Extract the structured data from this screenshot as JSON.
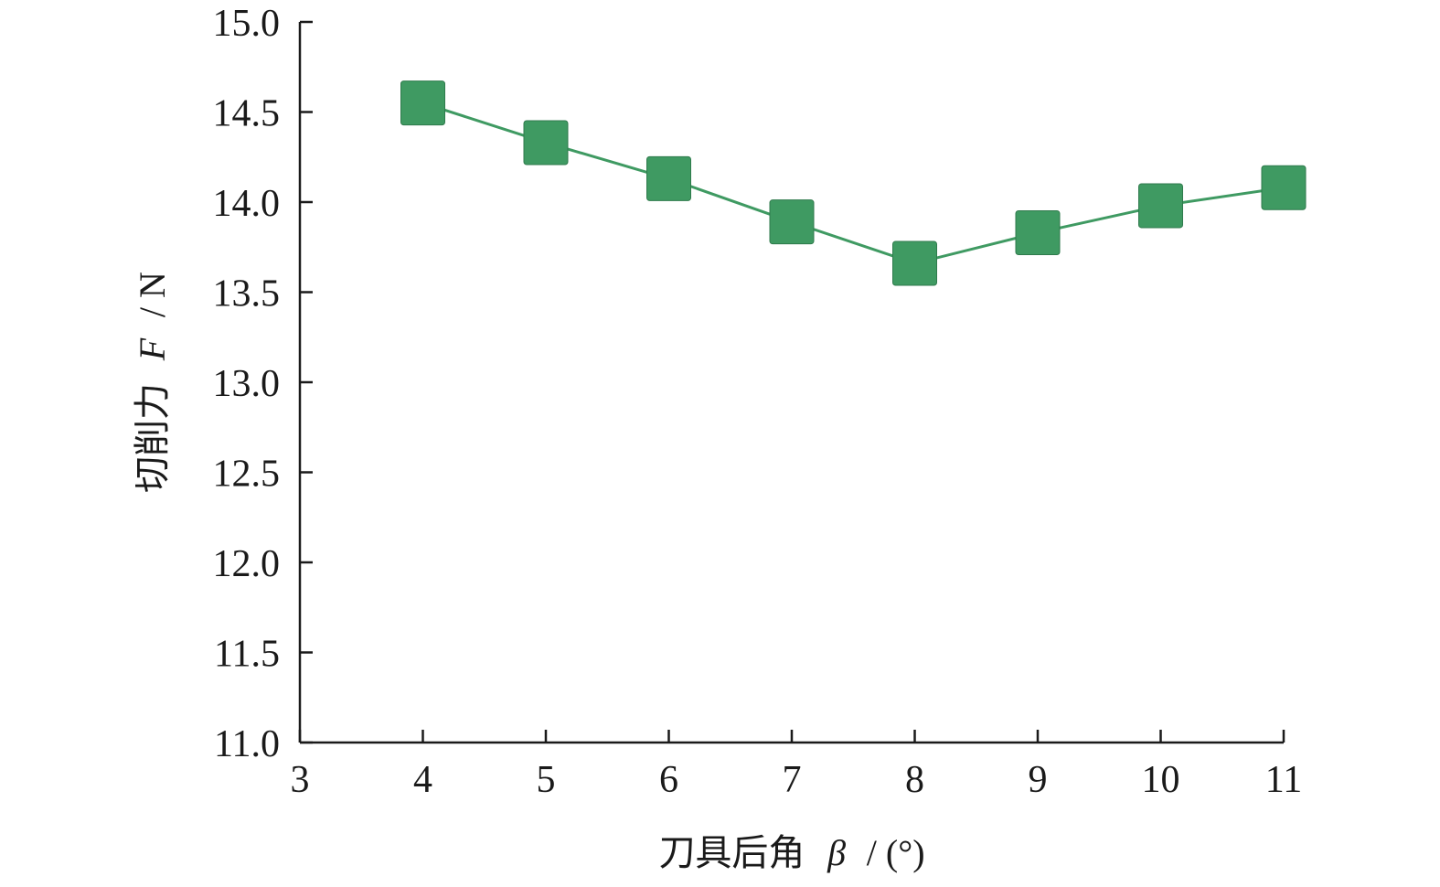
{
  "chart_data": {
    "type": "line",
    "title": "",
    "xlabel": {
      "text": "刀具后角",
      "symbol": "β",
      "unit": "/ (°)"
    },
    "ylabel": {
      "text": "切削力",
      "symbol": "F",
      "unit": "/ N"
    },
    "xlim": [
      3,
      11
    ],
    "ylim": [
      11.0,
      15.0
    ],
    "x_ticks": [
      3,
      4,
      5,
      6,
      7,
      8,
      9,
      10,
      11
    ],
    "x_tick_labels": [
      "3",
      "4",
      "5",
      "6",
      "7",
      "8",
      "9",
      "10",
      "11"
    ],
    "y_ticks": [
      11.0,
      11.5,
      12.0,
      12.5,
      13.0,
      13.5,
      14.0,
      14.5,
      15.0
    ],
    "y_tick_labels": [
      "11.0",
      "11.5",
      "12.0",
      "12.5",
      "13.0",
      "13.5",
      "14.0",
      "14.5",
      "15.0"
    ],
    "grid": false,
    "legend": "none",
    "series": [
      {
        "color": "#3f9a62",
        "marker": "square",
        "x": [
          4,
          5,
          6,
          7,
          8,
          9,
          10,
          11
        ],
        "y": [
          14.55,
          14.33,
          14.13,
          13.89,
          13.66,
          13.83,
          13.98,
          14.08
        ]
      }
    ]
  }
}
